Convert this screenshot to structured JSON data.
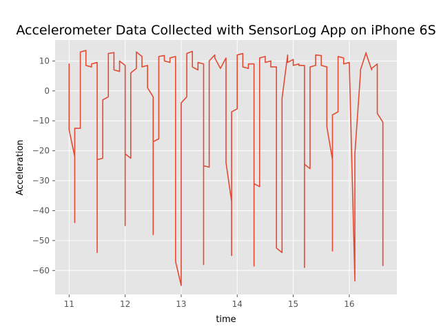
{
  "chart_data": {
    "type": "line",
    "title": "Accelerometer Data Collected with SensorLog App on iPhone 6S",
    "xlabel": "time",
    "ylabel": "Acceleration",
    "xlim": [
      10.75,
      16.85
    ],
    "ylim": [
      -68,
      17
    ],
    "xticks": [
      11,
      12,
      13,
      14,
      15,
      16
    ],
    "yticks": [
      10,
      0,
      -10,
      -20,
      -30,
      -40,
      -50,
      -60
    ],
    "xtick_labels": [
      "11",
      "12",
      "13",
      "14",
      "15",
      "16"
    ],
    "ytick_labels": [
      "10",
      "0",
      "−10",
      "−20",
      "−30",
      "−40",
      "−50",
      "−60"
    ],
    "grid": true,
    "line_color": "#e24a33",
    "series": [
      {
        "name": "acceleration",
        "x": [
          11.0,
          11.0,
          11.0,
          11.1,
          11.1,
          11.1,
          11.2,
          11.2,
          11.3,
          11.3,
          11.4,
          11.4,
          11.5,
          11.5,
          11.5,
          11.5,
          11.6,
          11.6,
          11.6,
          11.7,
          11.7,
          11.8,
          11.8,
          11.9,
          11.9,
          12.0,
          12.0,
          12.0,
          12.1,
          12.1,
          12.2,
          12.2,
          12.3,
          12.3,
          12.4,
          12.4,
          12.5,
          12.5,
          12.5,
          12.6,
          12.6,
          12.7,
          12.7,
          12.8,
          12.8,
          12.9,
          12.9,
          13.0,
          13.0,
          13.1,
          13.1,
          13.2,
          13.2,
          13.3,
          13.3,
          13.4,
          13.4,
          13.4,
          13.5,
          13.5,
          13.6,
          13.6,
          13.7,
          13.7,
          13.8,
          13.8,
          13.9,
          13.9,
          13.9,
          14.0,
          14.0,
          14.1,
          14.1,
          14.2,
          14.2,
          14.3,
          14.3,
          14.3,
          14.4,
          14.4,
          14.5,
          14.5,
          14.6,
          14.6,
          14.7,
          14.7,
          14.8,
          14.8,
          14.9,
          14.9,
          15.0,
          15.0,
          15.1,
          15.1,
          15.2,
          15.2,
          15.2,
          15.3,
          15.3,
          15.4,
          15.4,
          15.5,
          15.5,
          15.6,
          15.6,
          15.7,
          15.7,
          15.7,
          15.8,
          15.8,
          15.9,
          15.9,
          16.0,
          16.0,
          16.1,
          16.1,
          16.1,
          16.2,
          16.2,
          16.3,
          16.3,
          16.4,
          16.4,
          16.5,
          16.5,
          16.5,
          16.6,
          16.6
        ],
        "y": [
          8.5,
          9.0,
          -13.0,
          -22.0,
          -44.0,
          -12.5,
          -12.5,
          13.0,
          13.5,
          8.5,
          8.0,
          9.0,
          9.5,
          -54.0,
          -35.0,
          -23.0,
          -22.5,
          -4.0,
          -3.0,
          -2.0,
          12.5,
          12.8,
          7.0,
          6.5,
          10.0,
          8.5,
          -45.0,
          -21.0,
          -22.5,
          6.0,
          7.5,
          13.0,
          11.5,
          8.0,
          8.5,
          1.0,
          -2.0,
          -48.0,
          -17.0,
          -16.0,
          11.5,
          11.8,
          10.0,
          9.5,
          11.0,
          11.5,
          -57.0,
          -65.0,
          -4.0,
          -2.0,
          12.5,
          13.2,
          8.0,
          7.0,
          9.5,
          9.0,
          -58.0,
          -25.0,
          -25.5,
          10.0,
          12.0,
          11.0,
          7.5,
          7.5,
          11.0,
          -24.0,
          -37.0,
          -55.0,
          -7.0,
          -6.0,
          12.0,
          12.5,
          8.0,
          7.5,
          9.0,
          9.0,
          -58.5,
          -31.0,
          -32.0,
          11.0,
          11.5,
          9.5,
          10.0,
          8.0,
          8.0,
          -52.5,
          -54.0,
          -2.5,
          12.0,
          9.5,
          10.5,
          8.5,
          9.0,
          8.5,
          8.5,
          -59.0,
          -24.5,
          -26.0,
          8.0,
          8.5,
          12.0,
          11.8,
          8.5,
          8.0,
          -12.0,
          -23.0,
          -53.5,
          -8.0,
          -7.0,
          11.5,
          11.0,
          9.0,
          9.5,
          9.5,
          -63.5,
          -22.0,
          -21.0,
          6.0,
          7.0,
          12.8,
          12.5,
          7.0,
          7.5,
          9.0,
          -5.0,
          -7.5,
          -10.5,
          -58.5
        ]
      }
    ]
  }
}
